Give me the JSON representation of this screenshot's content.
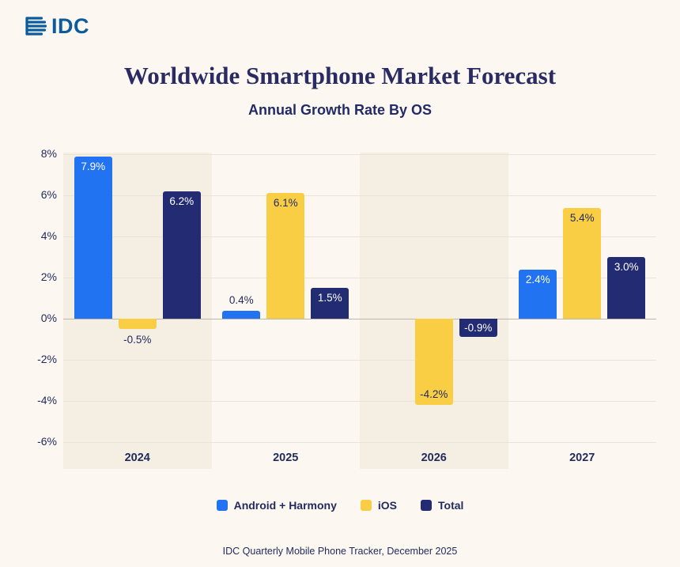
{
  "logo": {
    "text": "IDC"
  },
  "header": {
    "title": "Worldwide Smartphone Market Forecast",
    "subtitle": "Annual Growth Rate By OS"
  },
  "footer": {
    "source": "IDC Quarterly Mobile Phone Tracker, December 2025"
  },
  "colors": {
    "background": "#FCF8F1",
    "band": "#F4EEE3",
    "android": "#2273F2",
    "ios": "#F9CE45",
    "total": "#232B72",
    "text_navy": "#232B5E",
    "logo_blue": "#0B5C9E"
  },
  "legend": [
    {
      "name": "Android + Harmony",
      "color": "#2273F2"
    },
    {
      "name": "iOS",
      "color": "#F9CE45"
    },
    {
      "name": "Total",
      "color": "#232B72"
    }
  ],
  "chart_data": {
    "type": "bar",
    "title": "Worldwide Smartphone Market Forecast",
    "subtitle": "Annual Growth Rate By OS",
    "categories": [
      "2024",
      "2025",
      "2026",
      "2027"
    ],
    "series": [
      {
        "name": "Android + Harmony",
        "color": "#2273F2",
        "values": [
          7.9,
          0.4,
          null,
          2.4
        ],
        "labels": [
          "7.9%",
          "0.4%",
          "",
          "2.4%"
        ],
        "label_placements": [
          "inside-end",
          "outside-end",
          "",
          "inside-end"
        ],
        "label_color_inside": "#FFFFFF"
      },
      {
        "name": "iOS",
        "color": "#F9CE45",
        "values": [
          -0.5,
          6.1,
          -4.2,
          5.4
        ],
        "labels": [
          "-0.5%",
          "6.1%",
          "-4.2%",
          "5.4%"
        ],
        "label_placements": [
          "outside-end",
          "inside-end",
          "inside-end",
          "inside-end"
        ],
        "label_color_inside": "#232B5E"
      },
      {
        "name": "Total",
        "color": "#232B72",
        "values": [
          6.2,
          1.5,
          -0.9,
          3.0
        ],
        "labels": [
          "6.2%",
          "1.5%",
          "-0.9%",
          "3.0%"
        ],
        "label_placements": [
          "inside-end",
          "inside-end",
          "inside-center",
          "inside-end"
        ],
        "label_color_inside": "#FFFFFF"
      }
    ],
    "ylim": [
      -6,
      8
    ],
    "ytick_step": 2,
    "yticks": [
      8,
      6,
      4,
      2,
      0,
      -2,
      -4,
      -6
    ],
    "ytick_labels": [
      "8%",
      "6%",
      "4%",
      "2%",
      "0%",
      "-2%",
      "-4%",
      "-6%"
    ],
    "grid": true,
    "legend_position": "bottom",
    "band_columns": [
      0,
      2
    ],
    "outside_label_color": "#232B5E",
    "xlabel": "",
    "ylabel": ""
  }
}
